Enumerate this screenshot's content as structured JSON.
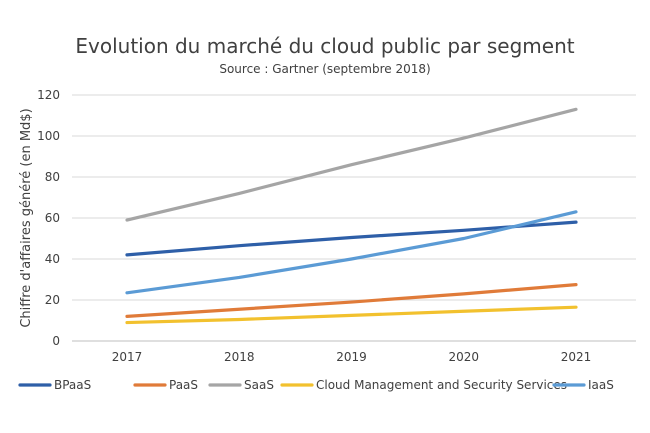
{
  "chart_data": {
    "type": "line",
    "title": "Evolution du marché du cloud public par segment",
    "subtitle": "Source : Gartner (septembre 2018)",
    "xlabel": "",
    "ylabel": "Chiffre d'affaires généré (en Md$)",
    "categories": [
      "2017",
      "2018",
      "2019",
      "2020",
      "2021"
    ],
    "ylim": [
      0,
      120
    ],
    "yticks": [
      0,
      20,
      40,
      60,
      80,
      100,
      120
    ],
    "grid": true,
    "legend_position": "bottom",
    "series": [
      {
        "name": "BPaaS",
        "color": "#2E5FA8",
        "values": [
          42,
          46.5,
          50.5,
          54,
          58
        ]
      },
      {
        "name": "PaaS",
        "color": "#E07B39",
        "values": [
          12,
          15.5,
          19,
          23,
          27.5
        ]
      },
      {
        "name": "SaaS",
        "color": "#A5A5A5",
        "values": [
          59,
          72,
          86,
          99,
          113
        ]
      },
      {
        "name": "Cloud Management and Security Services",
        "color": "#F2C12E",
        "values": [
          9,
          10.5,
          12.5,
          14.5,
          16.5
        ]
      },
      {
        "name": "IaaS",
        "color": "#5B9BD5",
        "values": [
          23.5,
          31,
          40,
          50,
          63
        ]
      }
    ]
  }
}
